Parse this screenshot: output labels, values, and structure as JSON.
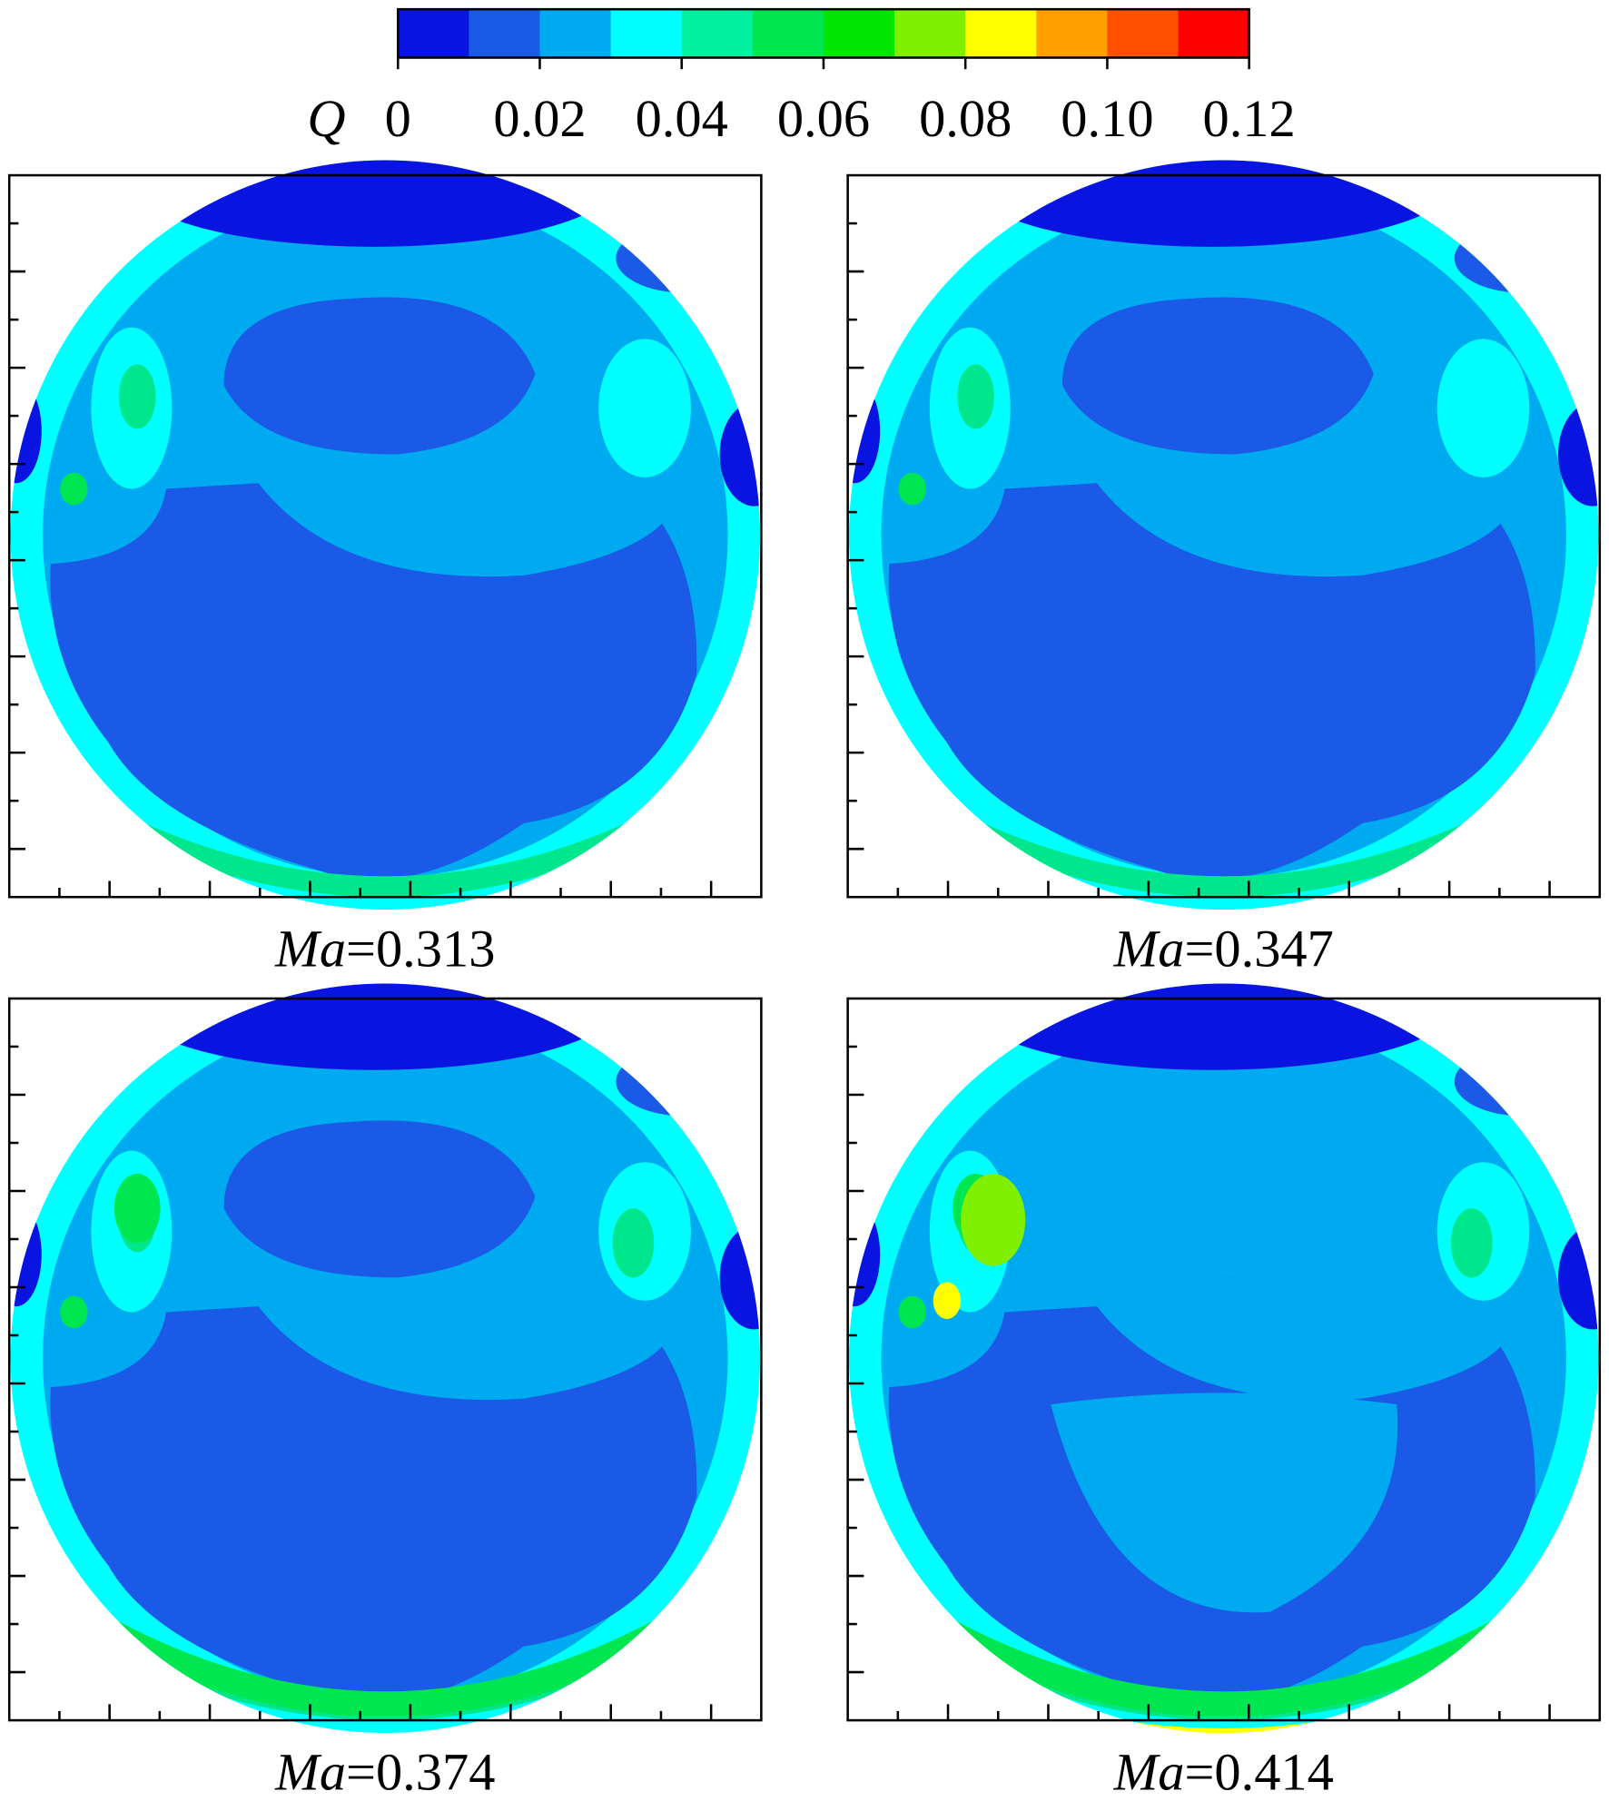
{
  "chart_data": {
    "type": "contour",
    "colorbar": {
      "label": "Q",
      "lim": [
        0,
        0.12
      ],
      "ticks": [
        0,
        0.02,
        0.04,
        0.06,
        0.08,
        {
          "value": 0.1,
          "label": "0.10"
        },
        0.12
      ],
      "colors": [
        "#0a14e0",
        "#1a5ae6",
        "#00aaf0",
        "#00ffff",
        "#00f0a0",
        "#00e650",
        "#00e600",
        "#80f000",
        "#ffff00",
        "#ffa000",
        "#ff5000",
        "#ff0000"
      ]
    },
    "panels": [
      {
        "label": "Ma=0.313"
      },
      {
        "label": "Ma=0.347"
      },
      {
        "label": "Ma=0.374"
      },
      {
        "label": "Ma=0.414"
      }
    ]
  }
}
